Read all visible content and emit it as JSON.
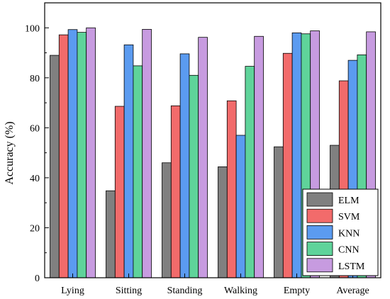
{
  "chart_data": {
    "type": "bar",
    "categories": [
      "Lying",
      "Sitting",
      "Standing",
      "Walking",
      "Empty",
      "Average"
    ],
    "series": [
      {
        "name": "ELM",
        "color": "#808080",
        "values": [
          89.0,
          34.8,
          46.0,
          44.4,
          52.4,
          53.0
        ]
      },
      {
        "name": "SVM",
        "color": "#f26b6b",
        "values": [
          97.2,
          68.6,
          68.8,
          70.8,
          89.8,
          78.8
        ]
      },
      {
        "name": "KNN",
        "color": "#5b9bf0",
        "values": [
          99.3,
          93.2,
          89.6,
          57.0,
          98.0,
          87.0
        ]
      },
      {
        "name": "CNN",
        "color": "#5fd39a",
        "values": [
          98.2,
          84.8,
          81.0,
          84.6,
          97.6,
          89.2
        ]
      },
      {
        "name": "LSTM",
        "color": "#c79be0",
        "values": [
          100.0,
          99.4,
          96.2,
          96.6,
          98.8,
          98.4
        ]
      }
    ],
    "ylabel": "Accuracy (%)",
    "xlabel": "",
    "ylim": [
      0,
      110
    ],
    "yticks": [
      0,
      20,
      40,
      60,
      80,
      100
    ],
    "grid": false,
    "legend_position": "bottom-right"
  }
}
